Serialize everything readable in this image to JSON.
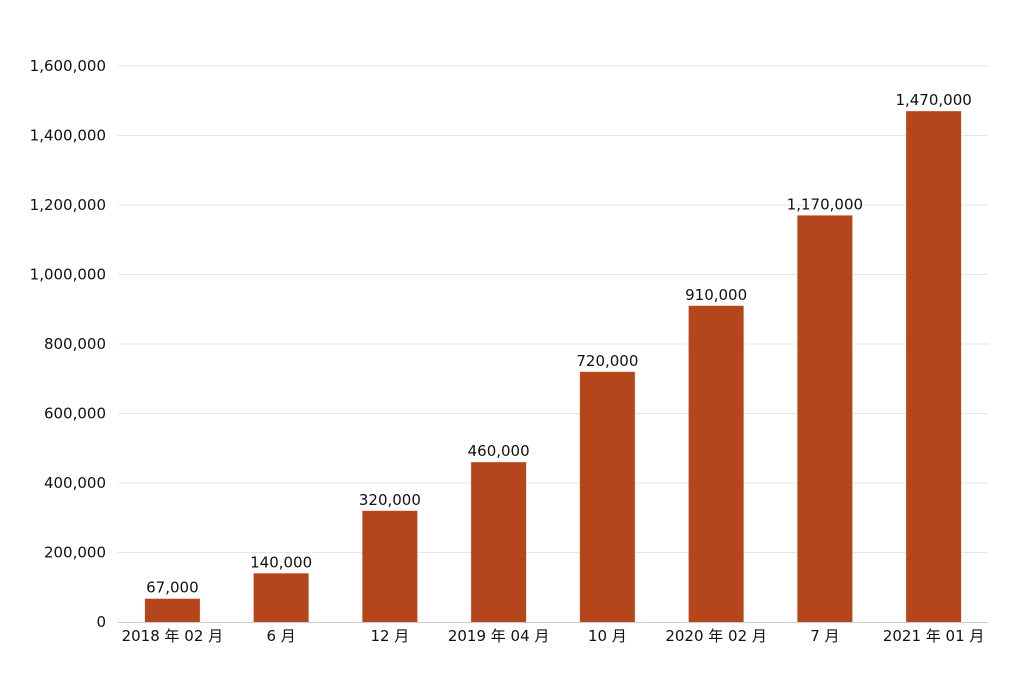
{
  "chart_data": {
    "type": "bar",
    "title": "",
    "xlabel": "",
    "ylabel": "",
    "categories": [
      "2018 年 02 月",
      "6 月",
      "12 月",
      "2019 年 04 月",
      "10 月",
      "2020 年 02 月",
      "7 月",
      "2021 年 01 月"
    ],
    "values": [
      67000,
      140000,
      320000,
      460000,
      720000,
      910000,
      1170000,
      1470000
    ],
    "value_labels": [
      "67,000",
      "140,000",
      "320,000",
      "460,000",
      "720,000",
      "910,000",
      "1,170,000",
      "1,470,000"
    ],
    "y_ticks": [
      0,
      200000,
      400000,
      600000,
      800000,
      1000000,
      1200000,
      1400000,
      1600000
    ],
    "y_tick_labels": [
      "0",
      "200,000",
      "400,000",
      "600,000",
      "800,000",
      "1,000,000",
      "1,200,000",
      "1,400,000",
      "1,600,000"
    ],
    "ylim": [
      0,
      1600000
    ],
    "grid": true,
    "legend": "none",
    "bar_color": "#b5451b"
  }
}
